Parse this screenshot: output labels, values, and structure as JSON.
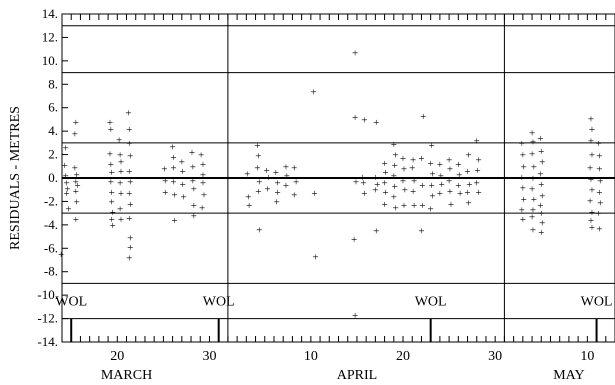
{
  "chart_data": {
    "type": "scatter",
    "ylabel": "RESIDUALS - METRES",
    "ylim": [
      -14,
      14
    ],
    "xlim_day_of_year": [
      73,
      133
    ],
    "y_ticks": [
      {
        "v": 14,
        "label": "14."
      },
      {
        "v": 12,
        "label": "12."
      },
      {
        "v": 10,
        "label": "10."
      },
      {
        "v": 8,
        "label": "8."
      },
      {
        "v": 6,
        "label": "6."
      },
      {
        "v": 4,
        "label": "4."
      },
      {
        "v": 2,
        "label": "2."
      },
      {
        "v": 0,
        "label": "0."
      },
      {
        "v": -2,
        "label": "-2."
      },
      {
        "v": -4,
        "label": "-4."
      },
      {
        "v": -6,
        "label": "-6."
      },
      {
        "v": -8,
        "label": "-8."
      },
      {
        "v": -10,
        "label": "-10."
      },
      {
        "v": -12,
        "label": "-12."
      },
      {
        "v": -14,
        "label": "-14."
      }
    ],
    "x_tick_labels": [
      {
        "day": 79,
        "label": "20"
      },
      {
        "day": 89,
        "label": "30"
      },
      {
        "day": 100,
        "label": "10"
      },
      {
        "day": 110,
        "label": "20"
      },
      {
        "day": 120,
        "label": "30"
      },
      {
        "day": 130,
        "label": "10"
      }
    ],
    "month_labels": [
      {
        "day": 80,
        "label": "MARCH"
      },
      {
        "day": 105,
        "label": "APRIL"
      },
      {
        "day": 128,
        "label": "MAY"
      }
    ],
    "month_boundaries": [
      91,
      121
    ],
    "station_markers": [
      {
        "day": 74,
        "label": "WOL"
      },
      {
        "day": 90,
        "label": "WOL"
      },
      {
        "day": 113,
        "label": "WOL"
      },
      {
        "day": 131,
        "label": "WOL"
      }
    ],
    "horizontal_lines": [
      0,
      3,
      -3,
      9,
      -9,
      13,
      -12
    ],
    "points": [
      [
        72.9,
        -6.5
      ],
      [
        73.4,
        2.6
      ],
      [
        73.4,
        0.2
      ],
      [
        73.5,
        -0.4
      ],
      [
        73.5,
        -1.3
      ],
      [
        73.7,
        -2.6
      ],
      [
        73.3,
        1.1
      ],
      [
        73.6,
        -0.9
      ],
      [
        74.5,
        4.8
      ],
      [
        74.4,
        3.8
      ],
      [
        74.4,
        0.9
      ],
      [
        74.5,
        -0.3
      ],
      [
        74.5,
        -1.1
      ],
      [
        74.6,
        -2.0
      ],
      [
        74.5,
        -3.5
      ],
      [
        74.6,
        0.3
      ],
      [
        74.7,
        -0.6
      ],
      [
        78.2,
        4.8
      ],
      [
        78.3,
        4.2
      ],
      [
        78.2,
        2.1
      ],
      [
        78.3,
        1.2
      ],
      [
        78.4,
        0.5
      ],
      [
        78.3,
        -0.3
      ],
      [
        78.4,
        -1.2
      ],
      [
        78.4,
        -2.0
      ],
      [
        78.5,
        -2.9
      ],
      [
        78.4,
        -3.5
      ],
      [
        78.5,
        -4.0
      ],
      [
        79.2,
        3.3
      ],
      [
        79.3,
        2.0
      ],
      [
        79.4,
        1.4
      ],
      [
        79.4,
        0.6
      ],
      [
        79.3,
        -0.4
      ],
      [
        79.4,
        -1.3
      ],
      [
        79.3,
        -2.6
      ],
      [
        79.4,
        -3.5
      ],
      [
        80.2,
        5.6
      ],
      [
        80.3,
        4.2
      ],
      [
        80.3,
        3.0
      ],
      [
        80.4,
        1.9
      ],
      [
        80.3,
        0.6
      ],
      [
        80.4,
        -0.3
      ],
      [
        80.3,
        -1.3
      ],
      [
        80.4,
        -2.2
      ],
      [
        80.3,
        -3.4
      ],
      [
        80.4,
        -5.1
      ],
      [
        80.4,
        -5.9
      ],
      [
        80.3,
        -6.8
      ],
      [
        84.1,
        0.8
      ],
      [
        84.2,
        -0.2
      ],
      [
        84.2,
        -1.2
      ],
      [
        85.0,
        2.7
      ],
      [
        85.1,
        1.8
      ],
      [
        85.1,
        0.9
      ],
      [
        85.1,
        -0.3
      ],
      [
        85.2,
        -1.4
      ],
      [
        85.2,
        -3.6
      ],
      [
        86.0,
        1.4
      ],
      [
        86.1,
        0.6
      ],
      [
        86.1,
        -0.5
      ],
      [
        86.2,
        -1.6
      ],
      [
        87.1,
        2.2
      ],
      [
        87.2,
        1.0
      ],
      [
        87.2,
        -0.2
      ],
      [
        87.3,
        -0.9
      ],
      [
        87.3,
        -2.3
      ],
      [
        87.3,
        -3.2
      ],
      [
        88.1,
        2.0
      ],
      [
        88.3,
        1.2
      ],
      [
        88.3,
        0.3
      ],
      [
        88.3,
        -0.4
      ],
      [
        88.4,
        -1.4
      ],
      [
        88.2,
        -2.5
      ],
      [
        93.2,
        -1.6
      ],
      [
        93.3,
        -2.3
      ],
      [
        93.1,
        0.4
      ],
      [
        94.2,
        2.8
      ],
      [
        94.3,
        1.9
      ],
      [
        94.2,
        0.9
      ],
      [
        94.4,
        -0.3
      ],
      [
        94.3,
        -1.1
      ],
      [
        94.4,
        -4.4
      ],
      [
        95.2,
        0.7
      ],
      [
        95.4,
        0.1
      ],
      [
        95.3,
        -0.9
      ],
      [
        96.2,
        0.5
      ],
      [
        96.4,
        -0.4
      ],
      [
        96.4,
        -1.2
      ],
      [
        96.3,
        -2.0
      ],
      [
        97.3,
        1.0
      ],
      [
        97.4,
        0.2
      ],
      [
        97.3,
        -0.6
      ],
      [
        98.2,
        0.9
      ],
      [
        98.4,
        -0.3
      ],
      [
        98.2,
        -1.4
      ],
      [
        100.3,
        7.4
      ],
      [
        100.4,
        -1.3
      ],
      [
        100.5,
        -6.7
      ],
      [
        104.8,
        10.7
      ],
      [
        104.8,
        5.2
      ],
      [
        104.9,
        -0.3
      ],
      [
        104.7,
        -5.2
      ],
      [
        104.8,
        -11.7
      ],
      [
        105.8,
        5.0
      ],
      [
        105.6,
        0.1
      ],
      [
        105.7,
        -0.4
      ],
      [
        105.8,
        -1.3
      ],
      [
        107.1,
        4.8
      ],
      [
        107.0,
        0.1
      ],
      [
        107.2,
        -0.5
      ],
      [
        107.0,
        -1.0
      ],
      [
        107.1,
        -4.5
      ],
      [
        108.0,
        1.3
      ],
      [
        108.1,
        0.5
      ],
      [
        108.0,
        -0.4
      ],
      [
        108.1,
        -1.2
      ],
      [
        108.0,
        -2.2
      ],
      [
        109.0,
        2.9
      ],
      [
        109.2,
        2.0
      ],
      [
        109.1,
        1.1
      ],
      [
        109.0,
        0.2
      ],
      [
        109.1,
        -0.7
      ],
      [
        109.0,
        -1.6
      ],
      [
        109.2,
        -2.5
      ],
      [
        110.0,
        1.7
      ],
      [
        110.1,
        0.8
      ],
      [
        110.0,
        -0.2
      ],
      [
        110.2,
        -1.0
      ],
      [
        110.1,
        -2.3
      ],
      [
        111.1,
        1.6
      ],
      [
        111.0,
        0.9
      ],
      [
        111.2,
        -0.2
      ],
      [
        111.1,
        -1.1
      ],
      [
        111.2,
        -2.3
      ],
      [
        112.0,
        1.7
      ],
      [
        112.2,
        5.3
      ],
      [
        112.1,
        -0.6
      ],
      [
        112.0,
        -4.5
      ],
      [
        112.1,
        -2.3
      ],
      [
        113.1,
        2.8
      ],
      [
        113.0,
        1.3
      ],
      [
        113.2,
        0.4
      ],
      [
        113.1,
        -0.6
      ],
      [
        113.2,
        -1.5
      ],
      [
        113.0,
        -2.6
      ],
      [
        114.0,
        1.2
      ],
      [
        114.1,
        0.2
      ],
      [
        114.2,
        -0.5
      ],
      [
        114.0,
        -1.3
      ],
      [
        115.0,
        1.6
      ],
      [
        115.1,
        0.8
      ],
      [
        115.0,
        -0.2
      ],
      [
        115.1,
        -1.1
      ],
      [
        115.2,
        -2.2
      ],
      [
        116.0,
        1.2
      ],
      [
        116.1,
        0.3
      ],
      [
        116.0,
        -0.6
      ],
      [
        116.2,
        -1.3
      ],
      [
        117.1,
        2.0
      ],
      [
        117.0,
        0.6
      ],
      [
        117.2,
        -0.5
      ],
      [
        117.0,
        -1.2
      ],
      [
        117.1,
        -2.1
      ],
      [
        118.0,
        3.2
      ],
      [
        118.2,
        1.6
      ],
      [
        118.1,
        0.7
      ],
      [
        118.0,
        -0.4
      ],
      [
        118.2,
        -1.2
      ],
      [
        122.9,
        3.0
      ],
      [
        123.0,
        2.0
      ],
      [
        123.1,
        1.0
      ],
      [
        122.9,
        0.1
      ],
      [
        123.0,
        -0.8
      ],
      [
        123.1,
        -1.8
      ],
      [
        122.9,
        -2.7
      ],
      [
        123.0,
        -3.5
      ],
      [
        124.0,
        3.9
      ],
      [
        124.1,
        3.1
      ],
      [
        124.0,
        2.1
      ],
      [
        124.2,
        1.0
      ],
      [
        124.1,
        0.0
      ],
      [
        124.0,
        -0.9
      ],
      [
        124.2,
        -1.8
      ],
      [
        124.1,
        -2.7
      ],
      [
        124.0,
        -3.3
      ],
      [
        124.1,
        -4.4
      ],
      [
        124.9,
        3.4
      ],
      [
        125.0,
        2.3
      ],
      [
        125.1,
        1.4
      ],
      [
        124.9,
        0.4
      ],
      [
        125.0,
        -0.5
      ],
      [
        125.1,
        -1.5
      ],
      [
        124.9,
        -2.3
      ],
      [
        125.0,
        -3.0
      ],
      [
        125.1,
        -3.8
      ],
      [
        125.0,
        -4.6
      ],
      [
        130.4,
        5.1
      ],
      [
        130.5,
        4.2
      ],
      [
        130.4,
        3.2
      ],
      [
        130.5,
        2.0
      ],
      [
        130.3,
        0.9
      ],
      [
        130.4,
        -0.1
      ],
      [
        130.5,
        -1.0
      ],
      [
        130.3,
        -1.9
      ],
      [
        130.5,
        -2.9
      ],
      [
        130.4,
        -3.6
      ],
      [
        130.5,
        -4.2
      ],
      [
        131.2,
        3.0
      ],
      [
        131.3,
        1.9
      ],
      [
        131.3,
        0.8
      ],
      [
        131.4,
        -0.2
      ],
      [
        131.3,
        -1.2
      ],
      [
        131.4,
        -2.1
      ],
      [
        131.2,
        -3.0
      ],
      [
        131.3,
        -4.3
      ]
    ]
  }
}
